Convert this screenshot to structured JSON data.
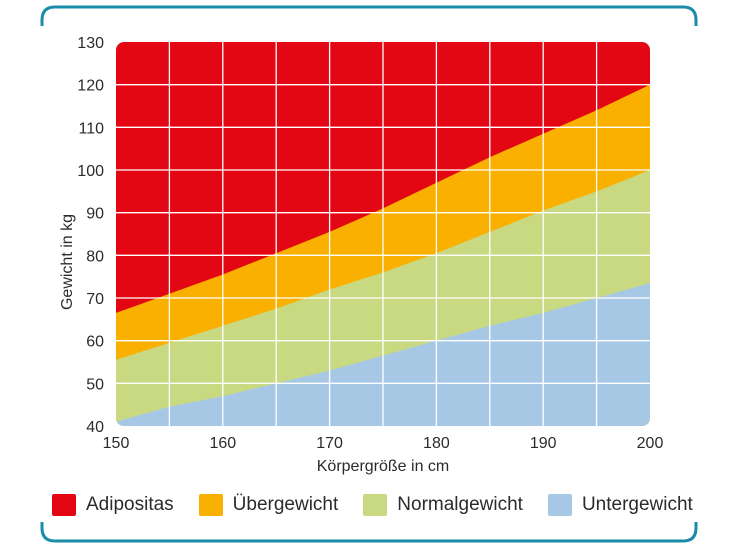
{
  "chart_data": {
    "type": "area",
    "xlabel": "Körpergröße in cm",
    "ylabel": "Gewicht in kg",
    "xlim": [
      150,
      200
    ],
    "ylim": [
      40,
      130
    ],
    "x_ticks": [
      150,
      160,
      170,
      180,
      190,
      200
    ],
    "y_ticks": [
      40,
      50,
      60,
      70,
      80,
      90,
      100,
      110,
      120,
      130
    ],
    "grid": true,
    "legend_position": "bottom",
    "x": [
      150,
      155,
      160,
      165,
      170,
      175,
      180,
      185,
      190,
      195,
      200
    ],
    "boundaries": [
      {
        "name": "Adipositas",
        "lower": [
          66.5,
          71,
          75.5,
          80.5,
          85.5,
          91,
          97,
          103,
          108.5,
          114,
          120
        ]
      },
      {
        "name": "Übergewicht",
        "lower": [
          55.5,
          59.5,
          63.5,
          67.5,
          72,
          76,
          80.5,
          85.5,
          90.5,
          95,
          100
        ]
      },
      {
        "name": "Normalgewicht",
        "lower": [
          41,
          44.5,
          47,
          50,
          53,
          56.5,
          60,
          63.5,
          66.5,
          70,
          73.5
        ]
      }
    ],
    "series": [
      {
        "name": "Adipositas",
        "color": "#e30613"
      },
      {
        "name": "Übergewicht",
        "color": "#f9b000"
      },
      {
        "name": "Normalgewicht",
        "color": "#c8d982"
      },
      {
        "name": "Untergewicht",
        "color": "#a6c8e5"
      }
    ]
  },
  "frame_color": "#1a8ca8",
  "grid_color": "#ffffff"
}
